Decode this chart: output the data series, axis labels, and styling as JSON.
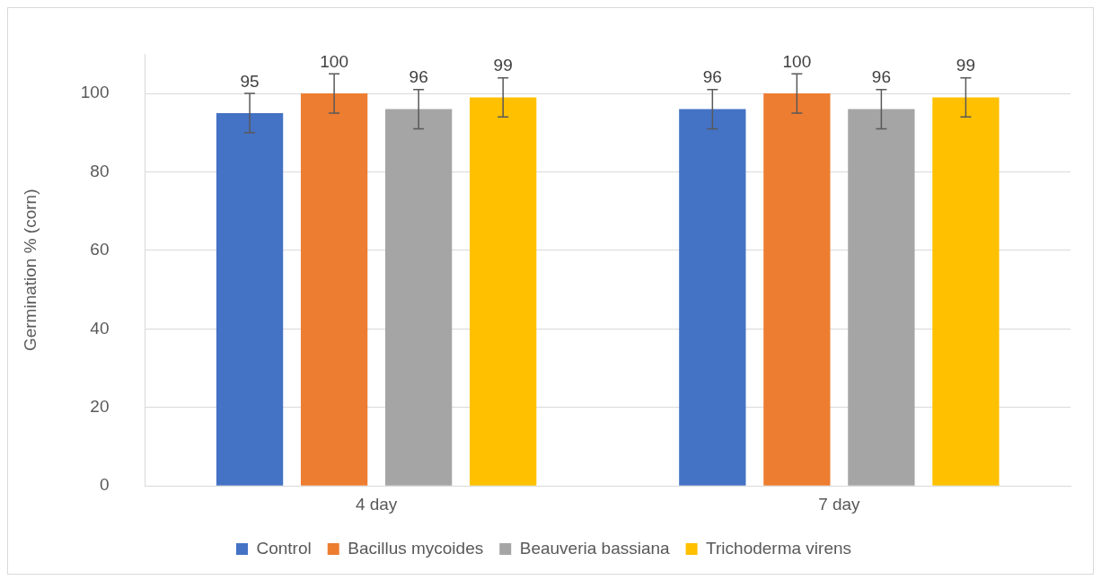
{
  "chart_data": {
    "type": "bar",
    "ylabel": "Germination % (corn)",
    "categories": [
      "4 day",
      "7 day"
    ],
    "series": [
      {
        "name": "Control",
        "color": "#4472c4",
        "values": [
          95,
          96
        ],
        "errors": [
          5,
          5
        ]
      },
      {
        "name": "Bacillus mycoides",
        "color": "#ed7d31",
        "values": [
          100,
          100
        ],
        "errors": [
          5,
          5
        ]
      },
      {
        "name": "Beauveria bassiana",
        "color": "#a5a5a5",
        "values": [
          96,
          96
        ],
        "errors": [
          5,
          5
        ]
      },
      {
        "name": "Trichoderma virens",
        "color": "#ffc000",
        "values": [
          99,
          99
        ],
        "errors": [
          5,
          5
        ]
      }
    ],
    "ylim": [
      0,
      110
    ],
    "yticks": [
      0,
      20,
      40,
      60,
      80,
      100
    ],
    "grid": "y",
    "legend": "bottom",
    "data_labels": true
  }
}
